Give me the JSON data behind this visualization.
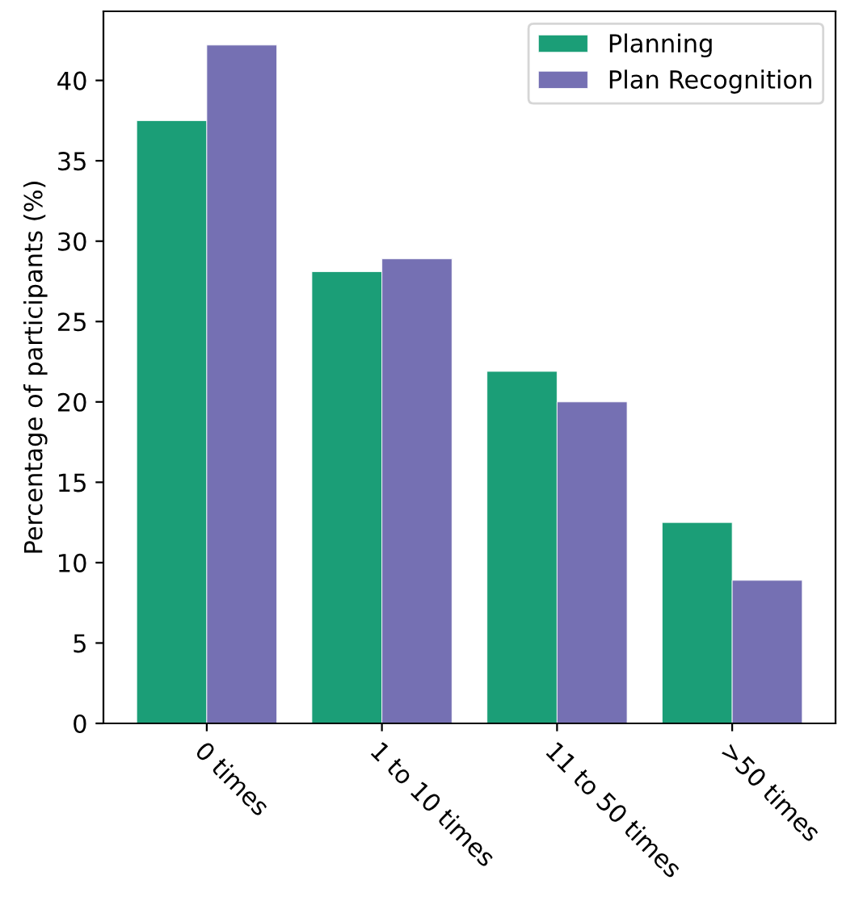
{
  "chart_data": {
    "type": "bar",
    "ylabel": "Percentage of participants (%)",
    "categories": [
      "0 times",
      "1 to 10 times",
      "11 to 50 times",
      ">50 times"
    ],
    "series": [
      {
        "name": "Planning",
        "color": "#1b9e77",
        "values": [
          37.5,
          28.1,
          21.9,
          12.5
        ]
      },
      {
        "name": "Plan Recognition",
        "color": "#7570b3",
        "values": [
          42.2,
          28.9,
          20.0,
          8.9
        ]
      }
    ],
    "ylim": [
      0,
      44.3
    ],
    "yticks": [
      0,
      5,
      10,
      15,
      20,
      25,
      30,
      35,
      40
    ],
    "grid": false,
    "legend": "top right"
  }
}
